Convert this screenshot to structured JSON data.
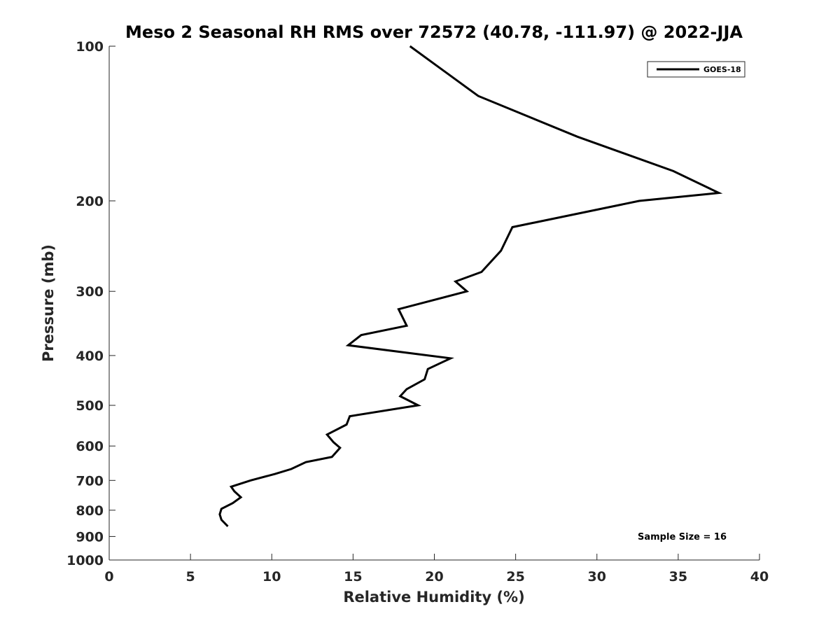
{
  "chart_data": {
    "type": "line",
    "title": "Meso 2 Seasonal RH RMS over 72572 (40.78, -111.97) @ 2022-JJA",
    "xlabel": "Relative Humidity (%)",
    "ylabel": "Pressure (mb)",
    "xlim": [
      0,
      40
    ],
    "ylim": [
      100,
      1000
    ],
    "y_scale": "log",
    "y_reversed": true,
    "grid": false,
    "legend_position": "top-right",
    "x_ticks": [
      "0",
      "5",
      "10",
      "15",
      "20",
      "25",
      "30",
      "35",
      "40"
    ],
    "y_ticks": [
      "100",
      "200",
      "300",
      "400",
      "500",
      "600",
      "700",
      "800",
      "900",
      "1000"
    ],
    "annotation": "Sample Size = 16",
    "series": [
      {
        "name": "GOES-18",
        "color": "#000000",
        "points": [
          [
            18.5,
            100
          ],
          [
            22.7,
            125
          ],
          [
            28.8,
            150
          ],
          [
            34.7,
            175
          ],
          [
            37.5,
            193
          ],
          [
            32.6,
            200
          ],
          [
            24.8,
            225
          ],
          [
            24.1,
            250
          ],
          [
            22.9,
            275
          ],
          [
            21.3,
            287
          ],
          [
            22.0,
            300
          ],
          [
            17.8,
            325
          ],
          [
            18.3,
            350
          ],
          [
            15.5,
            365
          ],
          [
            14.7,
            382
          ],
          [
            21.0,
            405
          ],
          [
            19.6,
            425
          ],
          [
            19.4,
            445
          ],
          [
            18.3,
            465
          ],
          [
            17.9,
            480
          ],
          [
            19.0,
            500
          ],
          [
            14.8,
            525
          ],
          [
            14.6,
            545
          ],
          [
            13.4,
            570
          ],
          [
            13.8,
            590
          ],
          [
            14.2,
            605
          ],
          [
            13.7,
            630
          ],
          [
            12.1,
            645
          ],
          [
            11.2,
            665
          ],
          [
            10.2,
            680
          ],
          [
            8.7,
            700
          ],
          [
            7.5,
            720
          ],
          [
            7.7,
            735
          ],
          [
            8.1,
            755
          ],
          [
            7.6,
            775
          ],
          [
            6.9,
            795
          ],
          [
            6.8,
            815
          ],
          [
            6.9,
            835
          ],
          [
            7.3,
            860
          ]
        ]
      }
    ]
  }
}
